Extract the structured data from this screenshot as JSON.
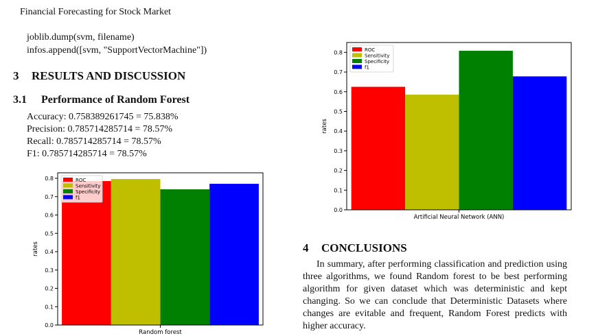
{
  "header": {
    "running_title": "Financial Forecasting for Stock Market"
  },
  "code": [
    "joblib.dump(svm, filename)",
    "infos.append([svm, \"SupportVectorMachine\"])"
  ],
  "section3": {
    "number": "3",
    "title": "RESULTS AND DISCUSSION"
  },
  "section31": {
    "number": "3.1",
    "title": "Performance of Random Forest"
  },
  "metrics": [
    "Accuracy: 0.758389261745 = 75.838%",
    "Precision: 0.785714285714  = 78.57%",
    "Recall: 0.785714285714 = 78.57%",
    "F1: 0.785714285714 = 78.57%"
  ],
  "section4": {
    "number": "4",
    "title": "CONCLUSIONS"
  },
  "conclusion": "In summary, after performing classification and prediction using three algorithms, we found Random forest to be best performing algorithm for given dataset which was deterministic and kept changing. So we can conclude that Deterministic Datasets where changes are evitable and frequent, Random Forest predicts with higher accuracy.",
  "chart_data": [
    {
      "type": "bar",
      "categories": [
        "Random forest"
      ],
      "series": [
        {
          "name": "ROC",
          "values": [
            0.785
          ],
          "color": "#ff0000"
        },
        {
          "name": "Sensitivity",
          "values": [
            0.796
          ],
          "color": "#bfbf00"
        },
        {
          "name": "Specificity",
          "values": [
            0.74
          ],
          "color": "#008000"
        },
        {
          "name": "f1",
          "values": [
            0.77
          ],
          "color": "#0000ff"
        }
      ],
      "ylabel": "rates",
      "xlabel": "",
      "ylim": [
        0,
        0.83
      ],
      "yticks": [
        "0.0",
        "0.1",
        "0.2",
        "0.3",
        "0.4",
        "0.5",
        "0.6",
        "0.7",
        "0.8"
      ],
      "legend": "top-left",
      "grid": false
    },
    {
      "type": "bar",
      "categories": [
        "Artificial Neural Network (ANN)"
      ],
      "series": [
        {
          "name": "ROC",
          "values": [
            0.625
          ],
          "color": "#ff0000"
        },
        {
          "name": "Sensitivity",
          "values": [
            0.585
          ],
          "color": "#bfbf00"
        },
        {
          "name": "Specificity",
          "values": [
            0.808
          ],
          "color": "#008000"
        },
        {
          "name": "f1",
          "values": [
            0.678
          ],
          "color": "#0000ff"
        }
      ],
      "ylabel": "rates",
      "xlabel": "",
      "ylim": [
        0,
        0.85
      ],
      "yticks": [
        "0.0",
        "0.1",
        "0.2",
        "0.3",
        "0.4",
        "0.5",
        "0.6",
        "0.7",
        "0.8"
      ],
      "legend": "top-left",
      "grid": false
    }
  ]
}
